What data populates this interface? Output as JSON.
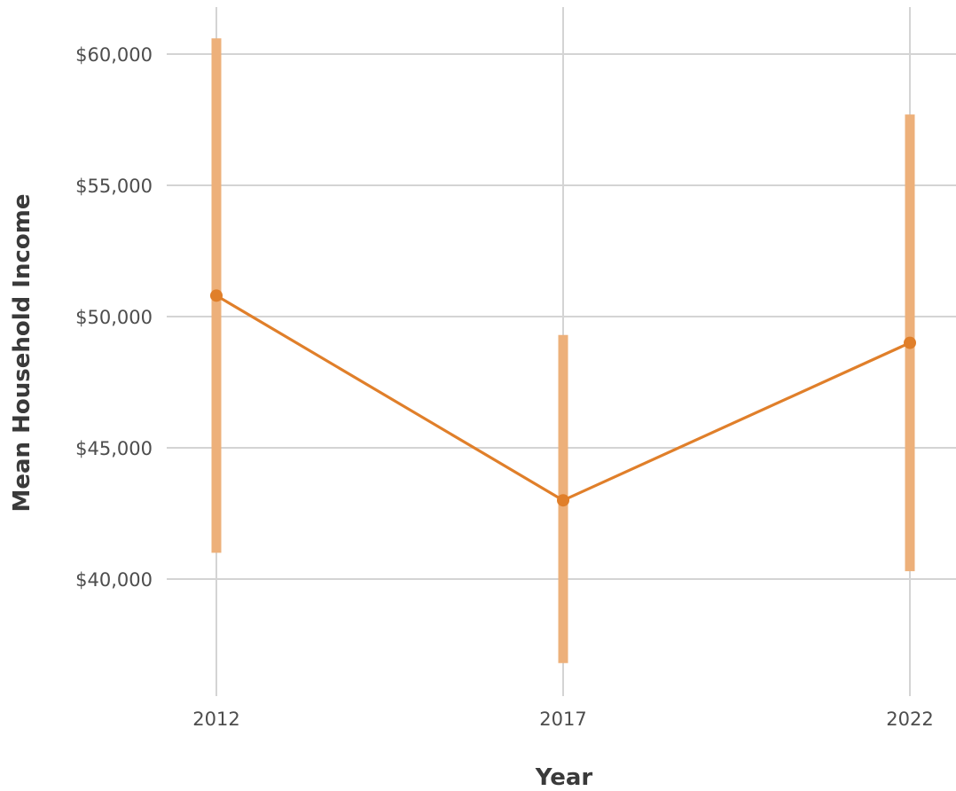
{
  "chart_data": {
    "type": "line",
    "title": "",
    "xlabel": "Year",
    "ylabel": "Mean Household Income",
    "x": [
      "2012",
      "2017",
      "2022"
    ],
    "series": [
      {
        "values": [
          50800,
          43000,
          49000
        ],
        "lower": [
          41000,
          36800,
          40300
        ],
        "upper": [
          60600,
          49300,
          57700
        ]
      }
    ],
    "yticks": [
      40000,
      45000,
      50000,
      55000,
      60000
    ],
    "ytick_labels": [
      "$40,000",
      "$45,000",
      "$50,000",
      "$55,000",
      "$60,000"
    ],
    "ylim": [
      34400,
      61700
    ],
    "grid": true,
    "colors": {
      "line": "#e07f2a",
      "error_bar": "#edb07a"
    }
  }
}
